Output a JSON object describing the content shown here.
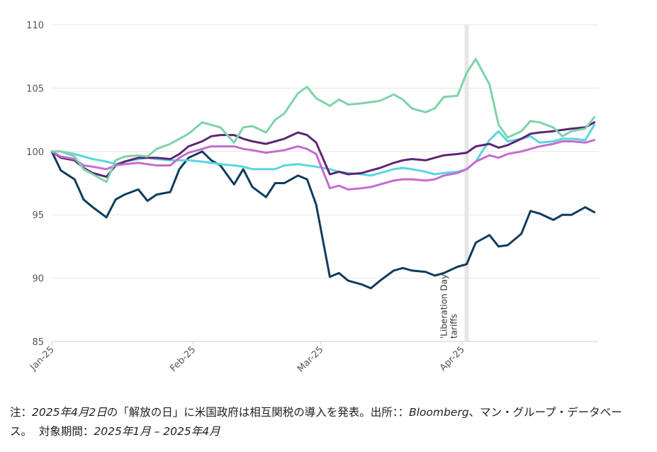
{
  "chart_data": {
    "type": "line",
    "x": [
      "2025-01-01",
      "2025-01-03",
      "2025-01-06",
      "2025-01-08",
      "2025-01-10",
      "2025-01-13",
      "2025-01-15",
      "2025-01-17",
      "2025-01-20",
      "2025-01-22",
      "2025-01-24",
      "2025-01-27",
      "2025-01-29",
      "2025-01-31",
      "2025-02-03",
      "2025-02-05",
      "2025-02-07",
      "2025-02-10",
      "2025-02-12",
      "2025-02-14",
      "2025-02-17",
      "2025-02-19",
      "2025-02-21",
      "2025-02-24",
      "2025-02-26",
      "2025-02-28",
      "2025-03-03",
      "2025-03-05",
      "2025-03-07",
      "2025-03-10",
      "2025-03-12",
      "2025-03-14",
      "2025-03-17",
      "2025-03-19",
      "2025-03-21",
      "2025-03-24",
      "2025-03-26",
      "2025-03-28",
      "2025-03-31",
      "2025-04-02",
      "2025-04-04",
      "2025-04-07",
      "2025-04-09",
      "2025-04-11",
      "2025-04-14",
      "2025-04-16",
      "2025-04-18",
      "2025-04-21",
      "2025-04-23",
      "2025-04-25",
      "2025-04-28",
      "2025-04-30"
    ],
    "series": [
      {
        "color": "#0f3d5c",
        "values": [
          100,
          98.5,
          97.8,
          96.2,
          95.6,
          94.8,
          96.2,
          96.6,
          97,
          96.1,
          96.6,
          96.8,
          98.6,
          99.5,
          100,
          99.3,
          98.9,
          97.4,
          98.6,
          97.2,
          96.4,
          97.5,
          97.5,
          98.1,
          97.8,
          95.8,
          90.1,
          90.4,
          89.8,
          89.5,
          89.2,
          89.8,
          90.6,
          90.8,
          90.6,
          90.5,
          90.2,
          90.4,
          90.9,
          91.1,
          92.8,
          93.4,
          92.5,
          92.6,
          93.5,
          95.3,
          95.1,
          94.6,
          95,
          95,
          95.6,
          95.2
        ]
      },
      {
        "color": "#5ad5e0",
        "values": [
          100,
          100,
          99.8,
          99.6,
          99.4,
          99.2,
          99,
          99.2,
          99.4,
          99.5,
          99.4,
          99.3,
          99.3,
          99.3,
          99.2,
          99.1,
          99,
          98.9,
          98.8,
          98.6,
          98.6,
          98.6,
          98.9,
          99,
          98.9,
          98.8,
          98.6,
          98.4,
          98.3,
          98.2,
          98.1,
          98.3,
          98.6,
          98.7,
          98.6,
          98.4,
          98.2,
          98.3,
          98.4,
          98.6,
          99.2,
          100.9,
          101.6,
          100.8,
          101,
          101.2,
          100.7,
          100.8,
          101,
          101,
          100.9,
          102.1
        ]
      },
      {
        "color": "#5c2772",
        "values": [
          100,
          99.5,
          99.3,
          98.7,
          98.3,
          98,
          98.9,
          99.2,
          99.5,
          99.5,
          99.5,
          99.4,
          99.8,
          100.4,
          100.8,
          101.2,
          101.3,
          101.3,
          101,
          100.8,
          100.6,
          100.8,
          101,
          101.5,
          101.3,
          100.7,
          98.2,
          98.4,
          98.2,
          98.3,
          98.5,
          98.7,
          99.1,
          99.3,
          99.4,
          99.3,
          99.5,
          99.7,
          99.8,
          99.9,
          100.4,
          100.6,
          100.3,
          100.5,
          101,
          101.4,
          101.5,
          101.6,
          101.7,
          101.8,
          101.9,
          102.3
        ]
      },
      {
        "color": "#c56ccf",
        "values": [
          100,
          99.6,
          99.4,
          98.9,
          98.8,
          98.6,
          98.9,
          99,
          99.1,
          99,
          98.9,
          98.9,
          99.5,
          99.9,
          100.2,
          100.4,
          100.4,
          100.4,
          100.2,
          100.1,
          99.9,
          100,
          100.1,
          100.4,
          100.2,
          99.8,
          97.1,
          97.3,
          97,
          97.1,
          97.2,
          97.4,
          97.7,
          97.8,
          97.8,
          97.7,
          97.8,
          98.1,
          98.3,
          98.6,
          99.2,
          99.7,
          99.5,
          99.8,
          100,
          100.2,
          100.4,
          100.6,
          100.8,
          100.8,
          100.7,
          100.9
        ]
      },
      {
        "color": "#7ed3a8",
        "values": [
          100,
          100,
          99.6,
          98.6,
          98.2,
          97.6,
          99.3,
          99.6,
          99.7,
          99.6,
          100.2,
          100.6,
          101,
          101.4,
          102.3,
          102.1,
          101.9,
          100.7,
          101.9,
          102,
          101.5,
          102.5,
          103,
          104.6,
          105.1,
          104.2,
          103.6,
          104.1,
          103.7,
          103.8,
          103.9,
          104,
          104.5,
          104.1,
          103.4,
          103.1,
          103.4,
          104.3,
          104.4,
          106.2,
          107.3,
          105.3,
          102.1,
          101.1,
          101.6,
          102.4,
          102.3,
          101.9,
          101.2,
          101.6,
          101.8,
          102.7
        ]
      }
    ],
    "ylim": [
      85,
      110
    ],
    "yticks": [
      "85",
      "90",
      "95",
      "100",
      "105",
      "110"
    ],
    "xticks": [
      {
        "label": "Jan-25",
        "x": "2025-01-01"
      },
      {
        "label": "Feb-25",
        "x": "2025-02-01"
      },
      {
        "label": "Mar-25",
        "x": "2025-03-01"
      },
      {
        "label": "Apr-25",
        "x": "2025-04-01"
      }
    ],
    "xlim": [
      "2025-01-01",
      "2025-05-01"
    ],
    "grid": true,
    "highlight_date": "2025-04-02",
    "annotation_lines": [
      "'Liberation Day",
      "tariffs"
    ]
  },
  "footnote": {
    "prefix": "注：",
    "date_part": "2025年4月2日",
    "middle": "の「解放の日」に米国政府は相互関税の導入を発表。出所：：",
    "source_italic": "Bloomberg",
    "source_rest": "、マン・グループ・データベース。",
    "period_label": "対象期間：",
    "period_value": "2025年1月 – 2025年4月"
  },
  "colors": {
    "grid": "#e6e6e6",
    "highlight": "#e6e6e6"
  }
}
